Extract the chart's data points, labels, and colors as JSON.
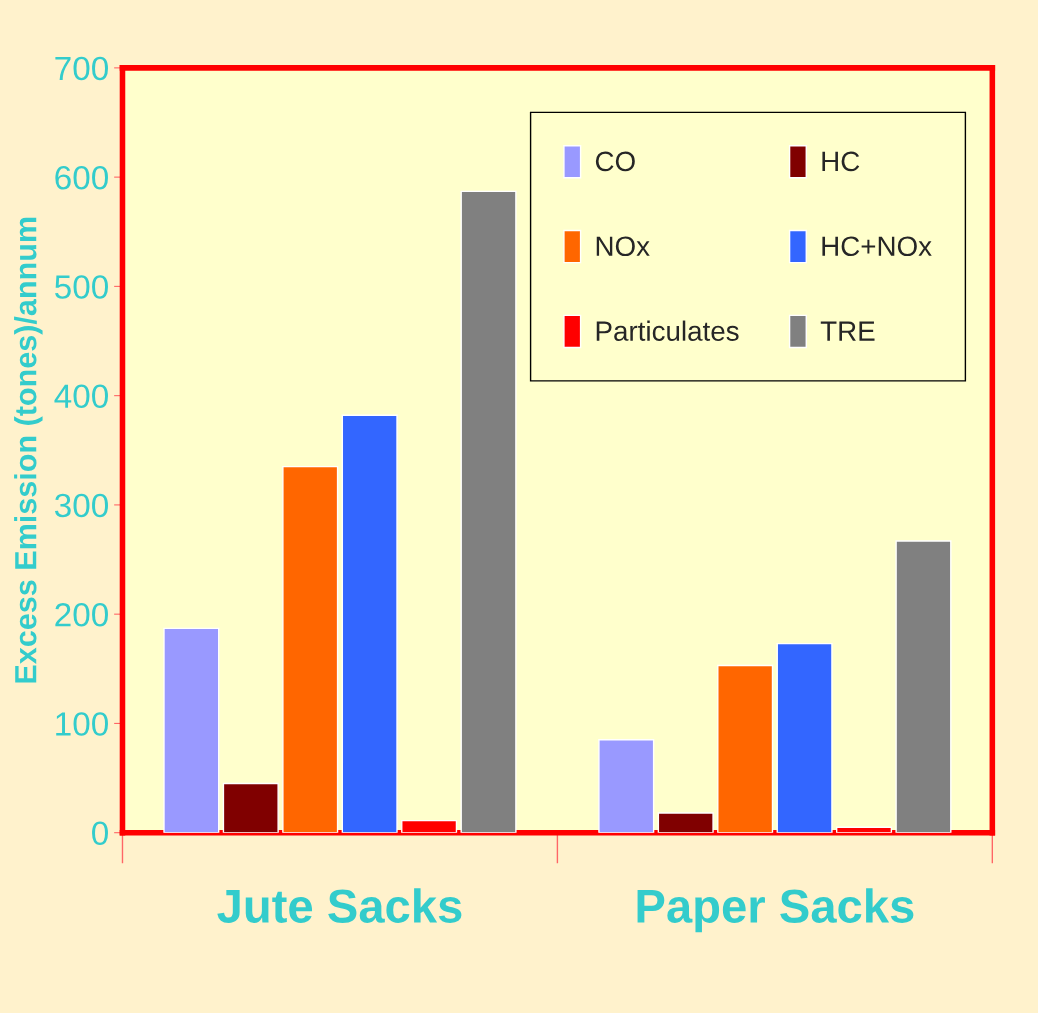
{
  "chart_data": {
    "type": "bar",
    "ylabel": "Excess Emission (tones)/annum",
    "categories": [
      "Jute Sacks",
      "Paper Sacks"
    ],
    "series": [
      {
        "name": "CO",
        "color": "#9999ff",
        "values": [
          187,
          85
        ]
      },
      {
        "name": "HC",
        "color": "#800000",
        "values": [
          45,
          18
        ]
      },
      {
        "name": "NOx",
        "color": "#ff6600",
        "values": [
          335,
          153
        ]
      },
      {
        "name": "HC+NOx",
        "color": "#3366ff",
        "values": [
          382,
          173
        ]
      },
      {
        "name": "Particulates",
        "color": "#ff0000",
        "values": [
          11,
          5
        ]
      },
      {
        "name": "TRE",
        "color": "#808080",
        "values": [
          587,
          267
        ]
      }
    ],
    "ylim": [
      0,
      700
    ],
    "yticks": [
      0,
      100,
      200,
      300,
      400,
      500,
      600,
      700
    ],
    "grid": false,
    "legend": "top right"
  }
}
